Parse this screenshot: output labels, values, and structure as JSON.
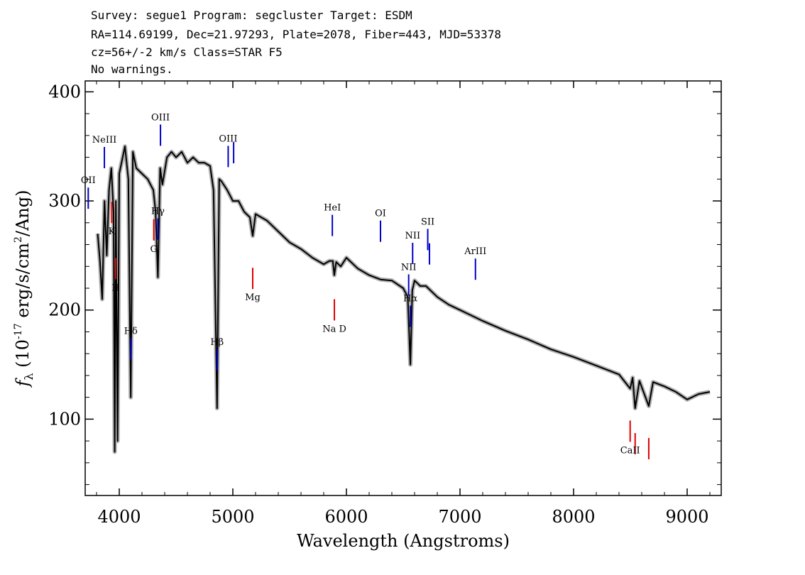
{
  "header": {
    "line1": "Survey: segue1 Program: segcluster Target: ESDM",
    "line2": "RA=114.69199, Dec=21.97293, Plate=2078, Fiber=443, MJD=53378",
    "line3": "cz=56+/-2 km/s Class=STAR F5",
    "line4": "No warnings."
  },
  "chart_data": {
    "type": "line",
    "xlabel": "Wavelength (Angstroms)",
    "ylabel": "f_λ (10^-17 erg/s/cm^2/Ang)",
    "xlim": [
      3700,
      9300
    ],
    "ylim": [
      30,
      410
    ],
    "x_ticks": [
      4000,
      5000,
      6000,
      7000,
      8000,
      9000
    ],
    "y_ticks": [
      100,
      200,
      300,
      400
    ],
    "grid": false,
    "legend": "none",
    "colors": {
      "spectrum": "#000000",
      "error_band": "#b0b0b0",
      "emission": "#0000cc",
      "absorption": "#dd0000"
    },
    "series": [
      {
        "x": [
          3810,
          3830,
          3850,
          3870,
          3890,
          3910,
          3930,
          3950,
          3960,
          3970,
          3985,
          4000,
          4020,
          4050,
          4080,
          4101,
          4120,
          4150,
          4200,
          4250,
          4300,
          4320,
          4340,
          4360,
          4380,
          4420,
          4460,
          4500,
          4550,
          4600,
          4650,
          4700,
          4750,
          4800,
          4830,
          4861,
          4880,
          4900,
          4950,
          5000,
          5050,
          5100,
          5150,
          5175,
          5200,
          5250,
          5300,
          5400,
          5500,
          5600,
          5700,
          5800,
          5850,
          5880,
          5893,
          5910,
          5950,
          6000,
          6100,
          6200,
          6300,
          6400,
          6500,
          6540,
          6563,
          6580,
          6600,
          6650,
          6700,
          6800,
          6900,
          7000,
          7100,
          7200,
          7400,
          7600,
          7800,
          8000,
          8200,
          8400,
          8498,
          8520,
          8542,
          8580,
          8662,
          8700,
          8800,
          8900,
          9000,
          9100,
          9200
        ],
        "y": [
          270,
          245,
          210,
          300,
          250,
          310,
          330,
          290,
          70,
          300,
          80,
          325,
          335,
          350,
          320,
          120,
          345,
          330,
          325,
          320,
          310,
          290,
          230,
          330,
          315,
          340,
          345,
          340,
          345,
          335,
          340,
          335,
          335,
          332,
          310,
          110,
          320,
          318,
          310,
          300,
          300,
          290,
          285,
          268,
          288,
          285,
          282,
          272,
          262,
          256,
          248,
          242,
          245,
          245,
          232,
          244,
          240,
          248,
          238,
          232,
          228,
          227,
          220,
          212,
          150,
          218,
          227,
          222,
          222,
          212,
          205,
          200,
          195,
          190,
          181,
          173,
          164,
          157,
          149,
          141,
          128,
          138,
          110,
          135,
          112,
          134,
          130,
          125,
          118,
          123,
          125
        ]
      }
    ],
    "emission_lines": [
      {
        "label": "OII",
        "wave": 3727
      },
      {
        "label": "NeIII",
        "wave": 3869
      },
      {
        "label": "Hδ",
        "wave": 4102
      },
      {
        "label": "Hγ",
        "wave": 4340
      },
      {
        "label": "OIII",
        "wave": 4363
      },
      {
        "label": "Hβ",
        "wave": 4861
      },
      {
        "label": "OIII",
        "wave": 4959
      },
      {
        "label": "",
        "wave": 5007
      },
      {
        "label": "HeI",
        "wave": 5876
      },
      {
        "label": "OI",
        "wave": 6300
      },
      {
        "label": "NII",
        "wave": 6548
      },
      {
        "label": "Hα",
        "wave": 6563
      },
      {
        "label": "NII",
        "wave": 6583
      },
      {
        "label": "SII",
        "wave": 6716
      },
      {
        "label": "",
        "wave": 6731
      },
      {
        "label": "ArIII",
        "wave": 7136
      }
    ],
    "absorption_lines": [
      {
        "label": "K",
        "wave": 3934
      },
      {
        "label": "H",
        "wave": 3969
      },
      {
        "label": "G",
        "wave": 4304
      },
      {
        "label": "Mg",
        "wave": 5175
      },
      {
        "label": "Na D",
        "wave": 5894
      },
      {
        "label": "CaII",
        "wave": 8498
      },
      {
        "label": "",
        "wave": 8542
      },
      {
        "label": "",
        "wave": 8662
      }
    ]
  }
}
